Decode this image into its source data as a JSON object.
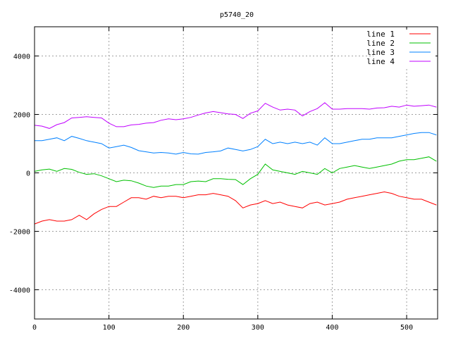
{
  "chart_data": {
    "type": "line",
    "title": "p5740_20",
    "xlabel": "",
    "ylabel": "",
    "xlim": [
      0,
      541.6
    ],
    "ylim": [
      -5000,
      5000
    ],
    "grid": true,
    "legend_position": "top-right",
    "xticks": [
      0,
      100,
      200,
      300,
      400,
      500
    ],
    "yticks": [
      -4000,
      -2000,
      0,
      2000,
      4000
    ],
    "x": [
      0,
      10,
      20,
      30,
      40,
      50,
      60,
      70,
      80,
      90,
      100,
      110,
      120,
      130,
      140,
      150,
      160,
      170,
      180,
      190,
      200,
      210,
      220,
      230,
      240,
      250,
      260,
      270,
      280,
      290,
      300,
      310,
      320,
      330,
      340,
      350,
      360,
      370,
      380,
      390,
      400,
      410,
      420,
      430,
      440,
      450,
      460,
      470,
      480,
      490,
      500,
      510,
      520,
      530,
      540
    ],
    "series": [
      {
        "name": "line 1",
        "color": "#ff0000",
        "values": [
          -1750,
          -1650,
          -1600,
          -1650,
          -1650,
          -1600,
          -1450,
          -1600,
          -1400,
          -1250,
          -1150,
          -1150,
          -1000,
          -850,
          -850,
          -900,
          -800,
          -850,
          -800,
          -800,
          -850,
          -800,
          -750,
          -750,
          -700,
          -750,
          -800,
          -950,
          -1200,
          -1100,
          -1050,
          -950,
          -1050,
          -1000,
          -1100,
          -1150,
          -1200,
          -1050,
          -1000,
          -1100,
          -1050,
          -1000,
          -900,
          -850,
          -800,
          -750,
          -700,
          -650,
          -700,
          -800,
          -850,
          -900,
          -900,
          -1000,
          -1100
        ]
      },
      {
        "name": "line 2",
        "color": "#00c000",
        "values": [
          50,
          100,
          130,
          50,
          150,
          120,
          20,
          -50,
          -30,
          -100,
          -200,
          -300,
          -250,
          -270,
          -350,
          -450,
          -500,
          -450,
          -450,
          -400,
          -400,
          -300,
          -280,
          -300,
          -200,
          -200,
          -220,
          -230,
          -400,
          -200,
          -50,
          300,
          100,
          50,
          0,
          -50,
          50,
          0,
          -50,
          150,
          0,
          150,
          200,
          250,
          200,
          150,
          200,
          250,
          300,
          400,
          450,
          450,
          500,
          550,
          400
        ]
      },
      {
        "name": "line 3",
        "color": "#0080ff",
        "values": [
          1100,
          1100,
          1150,
          1200,
          1100,
          1250,
          1180,
          1100,
          1050,
          1000,
          850,
          900,
          950,
          870,
          760,
          720,
          680,
          700,
          680,
          640,
          700,
          650,
          640,
          700,
          720,
          750,
          850,
          800,
          750,
          800,
          900,
          1150,
          1000,
          1050,
          1000,
          1050,
          1000,
          1050,
          950,
          1200,
          1000,
          1000,
          1050,
          1100,
          1150,
          1150,
          1200,
          1200,
          1200,
          1250,
          1300,
          1350,
          1380,
          1380,
          1300
        ]
      },
      {
        "name": "line 4",
        "color": "#c000ff",
        "values": [
          1630,
          1600,
          1520,
          1650,
          1720,
          1880,
          1900,
          1920,
          1900,
          1880,
          1700,
          1580,
          1580,
          1640,
          1660,
          1700,
          1720,
          1800,
          1850,
          1820,
          1850,
          1900,
          1980,
          2050,
          2100,
          2060,
          2020,
          2000,
          1860,
          2040,
          2120,
          2380,
          2250,
          2150,
          2180,
          2150,
          1950,
          2100,
          2200,
          2400,
          2180,
          2180,
          2200,
          2200,
          2200,
          2180,
          2220,
          2230,
          2280,
          2250,
          2320,
          2280,
          2300,
          2320,
          2250
        ]
      }
    ]
  }
}
